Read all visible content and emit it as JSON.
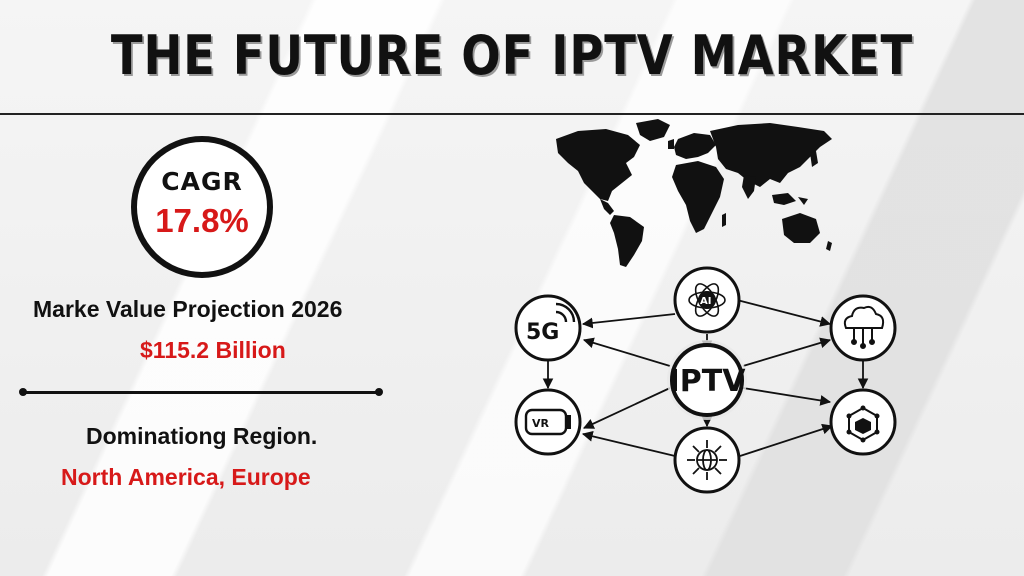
{
  "title": "THE FUTURE OF IPTV MARKET",
  "cagr": {
    "label": "CAGR",
    "value": "17.8%"
  },
  "market_value": {
    "label": "Marke Value Projection 2026",
    "value": "$115.2 Billion"
  },
  "region": {
    "label": "Dominationg Region.",
    "value": "North America, Europe"
  },
  "diagram": {
    "hub_label": "IPTV",
    "node_5g_label": "5G",
    "node_ai_label": "AI",
    "node_vr_label": "VR",
    "icons": [
      "5g-wifi-icon",
      "ai-chip-icon",
      "cloud-network-icon",
      "vr-headset-icon",
      "globe-network-icon",
      "blockchain-cube-icon",
      "world-map-icon"
    ]
  },
  "colors": {
    "accent_red": "#d71919",
    "text_dark": "#111111"
  }
}
